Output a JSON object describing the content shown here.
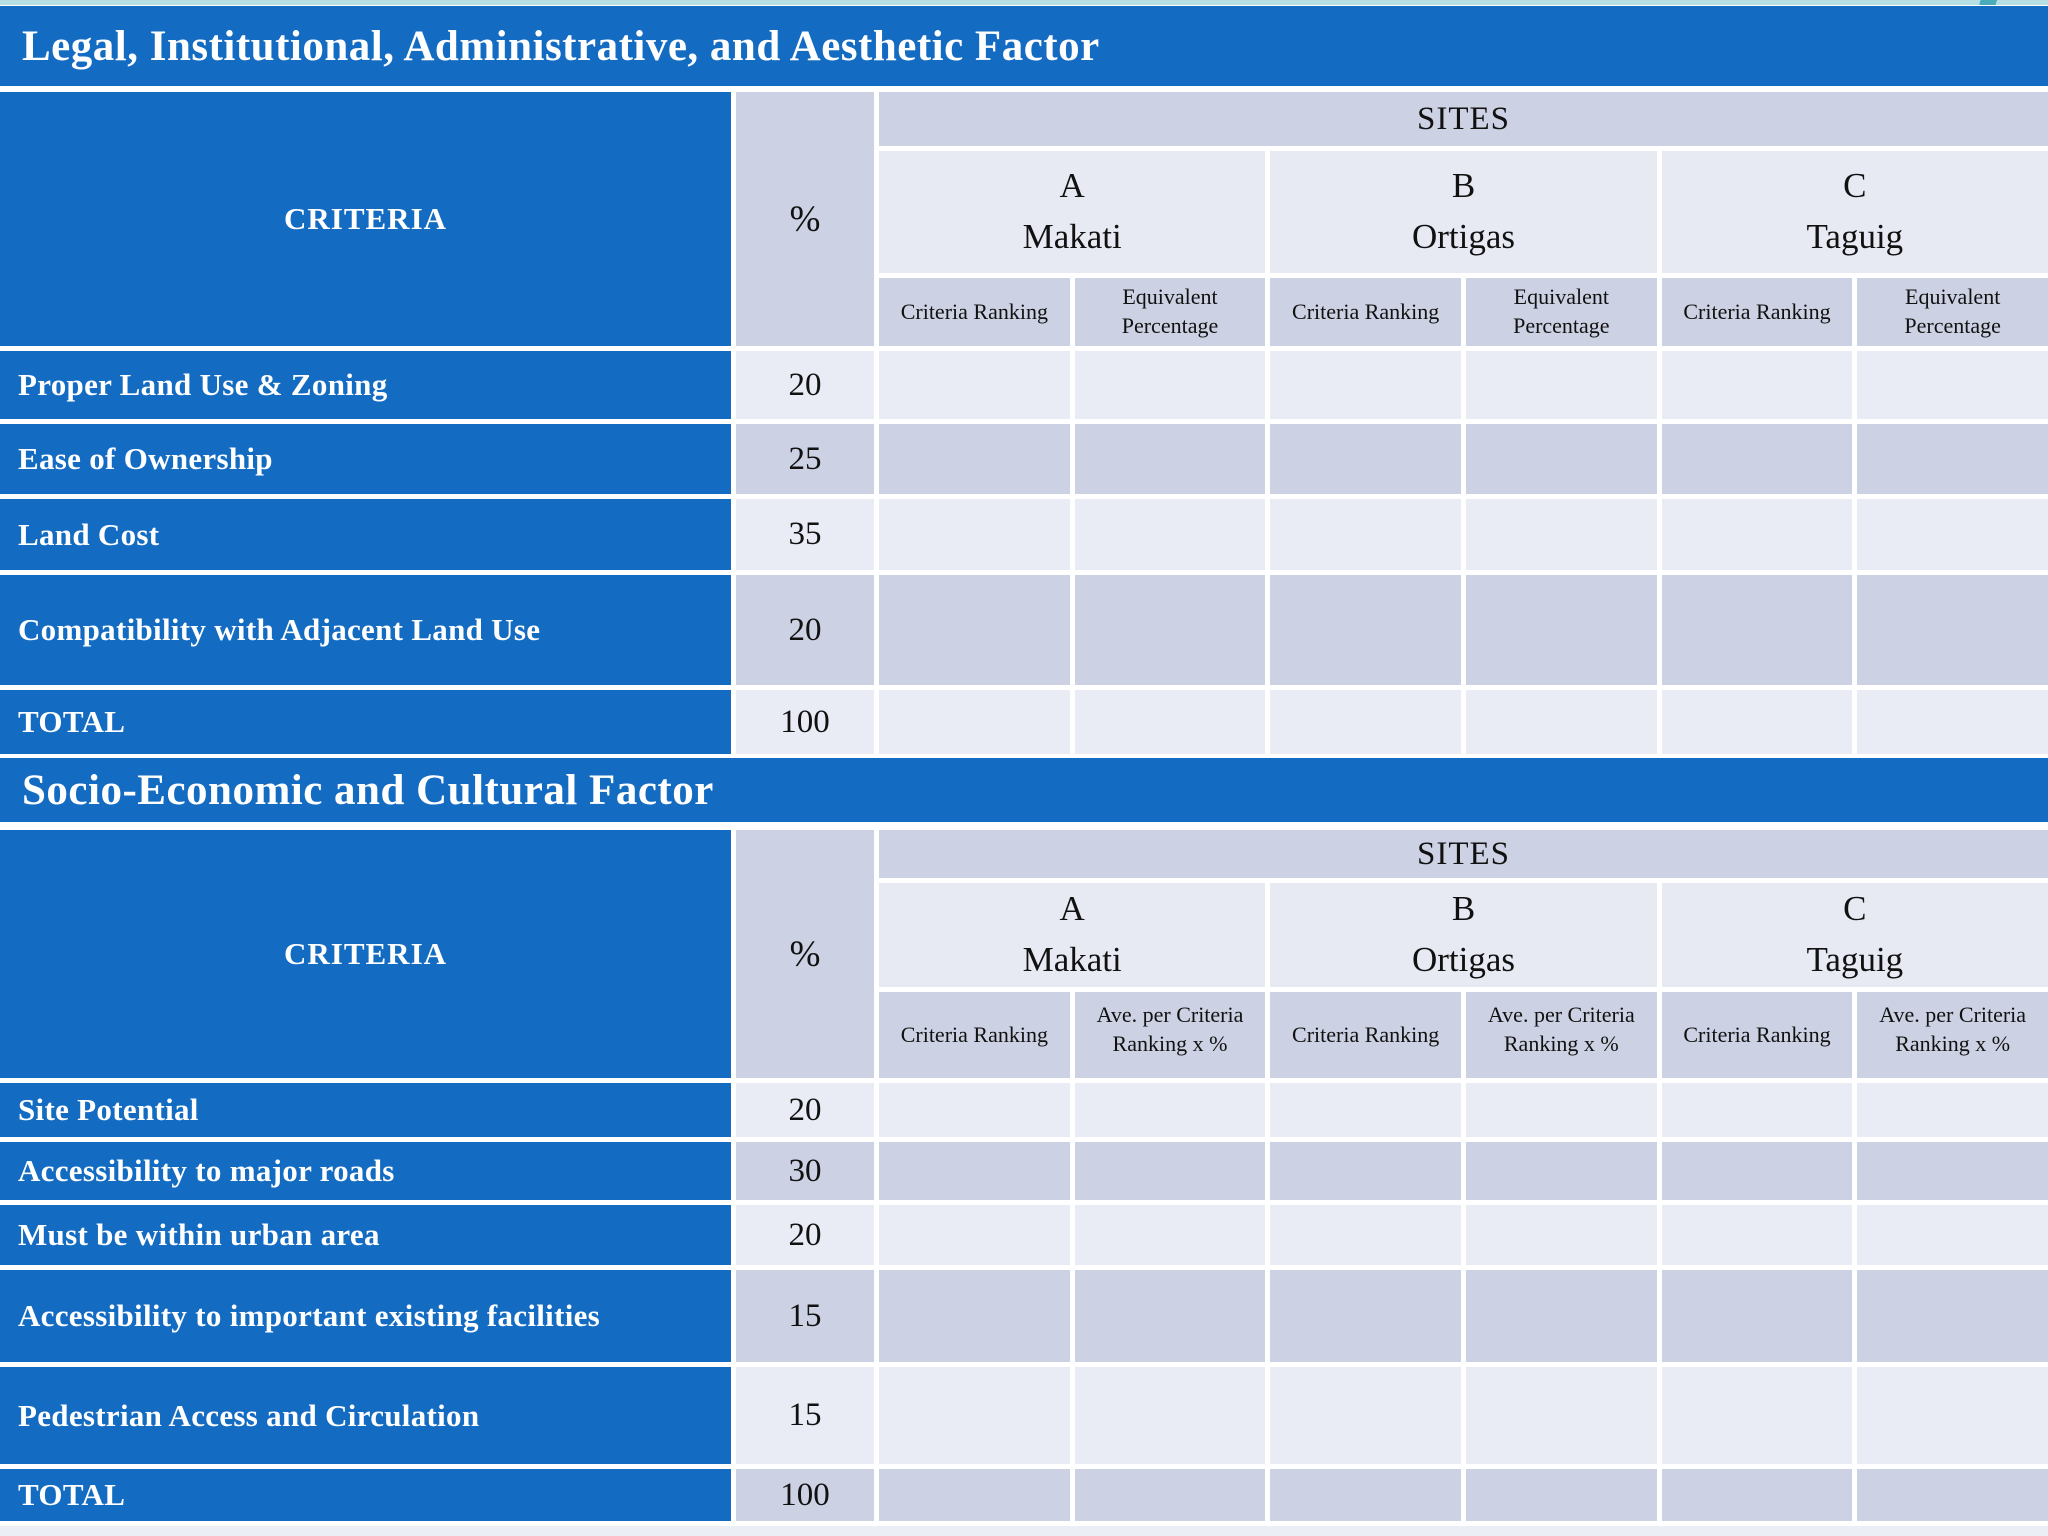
{
  "decor": {
    "top_strip_color": "#b6dfe4",
    "accent_color": "#4aacba"
  },
  "colors": {
    "title_blue": "#146cc2",
    "dark_cell": "#ccd1e3",
    "light_cell": "#e9ebf5"
  },
  "tables": [
    {
      "title": "Legal, Institutional, Administrative, and Aesthetic Factor",
      "criteria_header": "CRITERIA",
      "percent_header": "%",
      "sites_header": "SITES",
      "sites": [
        {
          "letter": "A",
          "name": "Makati"
        },
        {
          "letter": "B",
          "name": "Ortigas"
        },
        {
          "letter": "C",
          "name": "Taguig"
        }
      ],
      "sub_headers": {
        "ranking": "Criteria Ranking",
        "value": "Equivalent Percentage"
      },
      "rows": [
        {
          "label": "Proper Land Use & Zoning",
          "percent": "20"
        },
        {
          "label": "Ease of Ownership",
          "percent": "25"
        },
        {
          "label": "Land Cost",
          "percent": "35"
        },
        {
          "label": "Compatibility with Adjacent Land Use",
          "percent": "20"
        },
        {
          "label": "TOTAL",
          "percent": "100"
        }
      ]
    },
    {
      "title": "Socio-Economic and Cultural Factor",
      "criteria_header": "CRITERIA",
      "percent_header": "%",
      "sites_header": "SITES",
      "sites": [
        {
          "letter": "A",
          "name": "Makati"
        },
        {
          "letter": "B",
          "name": "Ortigas"
        },
        {
          "letter": "C",
          "name": "Taguig"
        }
      ],
      "sub_headers": {
        "ranking": "Criteria Ranking",
        "value": "Ave. per Criteria Ranking x %"
      },
      "rows": [
        {
          "label": "Site Potential",
          "percent": "20"
        },
        {
          "label": "Accessibility to major roads",
          "percent": "30"
        },
        {
          "label": "Must be within urban area",
          "percent": "20"
        },
        {
          "label": "Accessibility to important existing facilities",
          "percent": "15"
        },
        {
          "label": "Pedestrian Access and Circulation",
          "percent": "15"
        },
        {
          "label": "TOTAL",
          "percent": "100"
        }
      ]
    }
  ]
}
